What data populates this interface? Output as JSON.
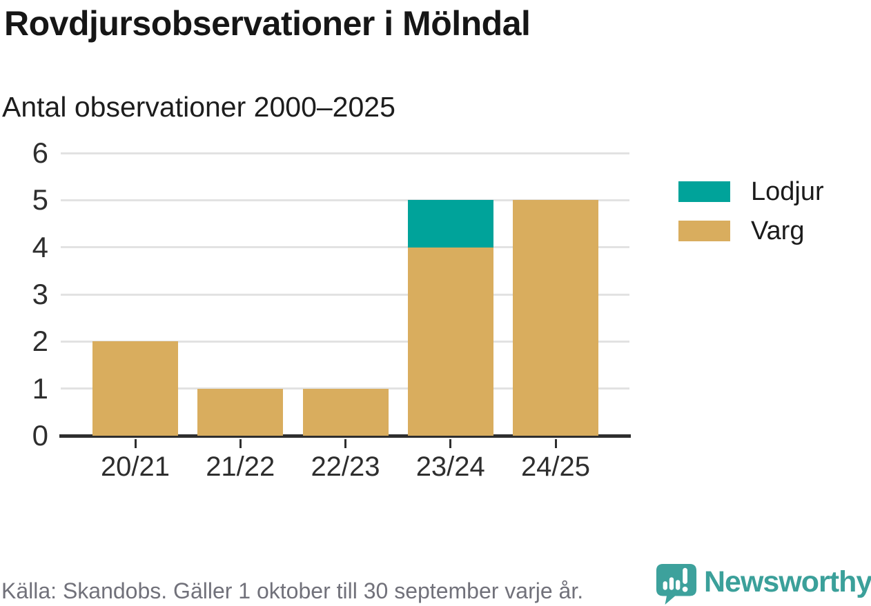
{
  "header": {
    "title": "Rovdjursobservationer i Mölndal",
    "subtitle": "Antal observationer 2000–2025"
  },
  "chart_data": {
    "type": "bar",
    "stacked": true,
    "title": "Rovdjursobservationer i Mölndal",
    "subtitle": "Antal observationer 2000–2025",
    "categories": [
      "20/21",
      "21/22",
      "22/23",
      "23/24",
      "24/25"
    ],
    "series": [
      {
        "name": "Lodjur",
        "color": "#00a39a",
        "values": [
          0,
          0,
          0,
          1,
          0
        ]
      },
      {
        "name": "Varg",
        "color": "#d9ad5e",
        "values": [
          2,
          1,
          1,
          4,
          5
        ]
      }
    ],
    "xlabel": "",
    "ylabel": "",
    "ylim": [
      0,
      6
    ],
    "yticks": [
      0,
      1,
      2,
      3,
      4,
      5,
      6
    ],
    "grid": "horizontal",
    "legend_position": "right"
  },
  "footer": {
    "source": "Källa: Skandobs. Gäller 1 oktober till 30 september varje år.",
    "brand": "Newsworthy"
  },
  "colors": {
    "lodjur": "#00a39a",
    "varg": "#d9ad5e",
    "gridline": "#e2e2e2",
    "axis": "#2e2e2e",
    "source_text": "#71717a",
    "brand_teal": "#3ba09a"
  }
}
